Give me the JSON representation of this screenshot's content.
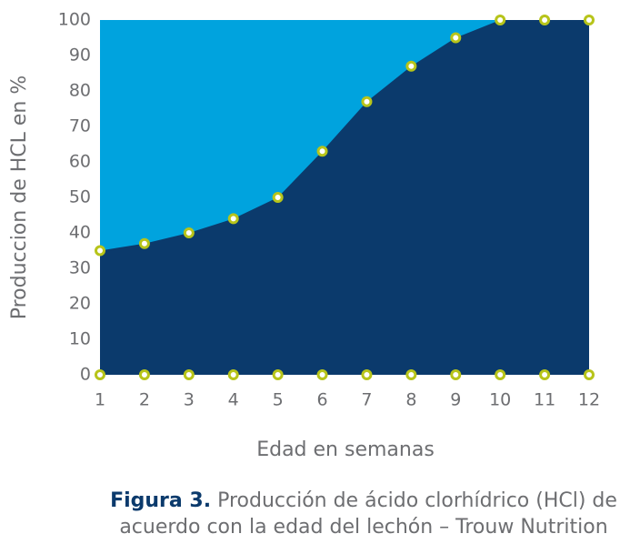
{
  "chart_data": {
    "type": "area",
    "y_label": "Produccion de HCL en %",
    "x_label": "Edad en semanas",
    "caption": {
      "label": "Figura 3.",
      "lines": [
        "Producción de ácido clorhídrico (HCl) de",
        "acuerdo con la edad del lechón – Trouw Nutrition"
      ]
    },
    "x": [
      1,
      2,
      3,
      4,
      5,
      6,
      7,
      8,
      9,
      10,
      11,
      12
    ],
    "series": [
      {
        "color": "#0b3a6c",
        "values": [
          35,
          37,
          40,
          44,
          50,
          63,
          77,
          87,
          95,
          100,
          100,
          100
        ]
      },
      {
        "color": "#0b3a6c",
        "values": [
          0,
          0,
          0,
          0,
          0,
          0,
          0,
          0,
          0,
          0,
          0,
          0
        ]
      }
    ],
    "background": "#00a3de",
    "marker_color": "#b7c41a",
    "xlim": [
      1,
      12
    ],
    "ylim": [
      0,
      100
    ],
    "xticks": [
      1,
      2,
      3,
      4,
      5,
      6,
      7,
      8,
      9,
      10,
      11,
      12
    ],
    "yticks": [
      0,
      10,
      20,
      30,
      40,
      50,
      60,
      70,
      80,
      90,
      100
    ]
  }
}
